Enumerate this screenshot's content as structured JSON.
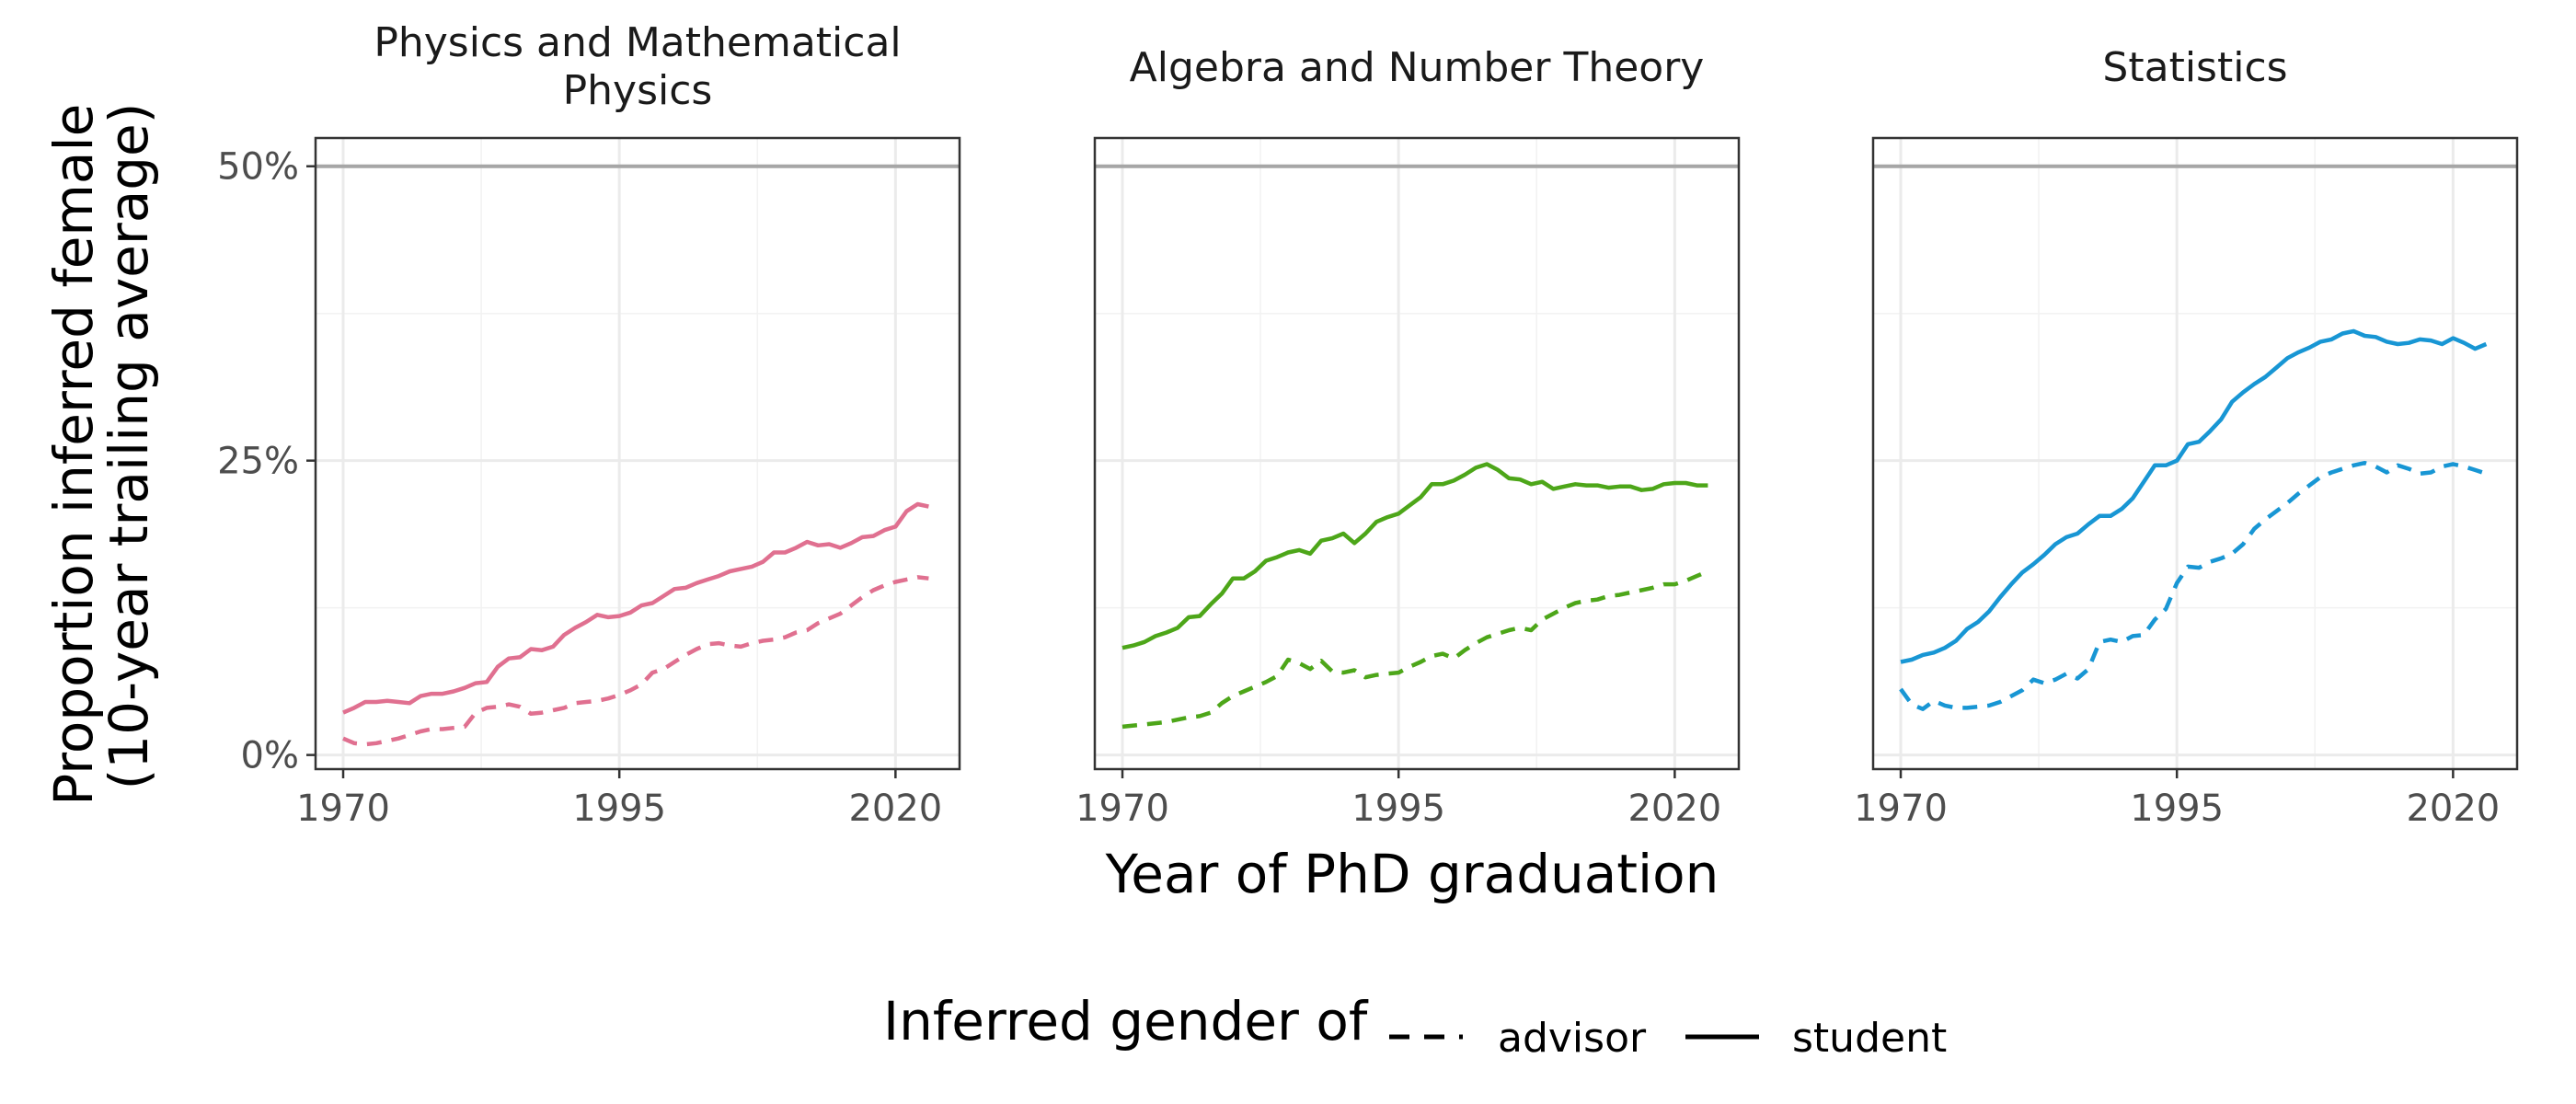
{
  "chart_data": {
    "type": "line",
    "xlabel": "Year of PhD graduation",
    "ylabel_lines": [
      "Proportion inferred female",
      "(10-year trailing average)"
    ],
    "xticks": [
      1970,
      1995,
      2020
    ],
    "yticks": [
      {
        "value": 0,
        "label": "0%"
      },
      {
        "value": 0.25,
        "label": "25%"
      },
      {
        "value": 0.5,
        "label": "50%"
      }
    ],
    "xlim": [
      1967.5,
      2025.8
    ],
    "ylim": [
      -0.012,
      0.524
    ],
    "reference_line": 0.5,
    "grid": true,
    "legend": {
      "title": "Inferred gender of",
      "position": "bottom",
      "entries": [
        {
          "label": "advisor",
          "style": "dashed"
        },
        {
          "label": "student",
          "style": "solid"
        }
      ]
    },
    "panels": [
      {
        "title_lines": [
          "Physics and Mathematical",
          "Physics"
        ],
        "color": "#e07090",
        "series": [
          {
            "role": "student",
            "style": "solid",
            "x": [
              1970,
              1971,
              1972,
              1973,
              1974,
              1975,
              1976,
              1977,
              1978,
              1979,
              1980,
              1981,
              1982,
              1983,
              1984,
              1985,
              1986,
              1987,
              1988,
              1989,
              1990,
              1991,
              1992,
              1993,
              1994,
              1995,
              1996,
              1997,
              1998,
              1999,
              2000,
              2001,
              2002,
              2003,
              2004,
              2005,
              2006,
              2007,
              2008,
              2009,
              2010,
              2011,
              2012,
              2013,
              2014,
              2015,
              2016,
              2017,
              2018,
              2019,
              2020,
              2021,
              2022,
              2023
            ],
            "y": [
              0.036,
              0.04,
              0.045,
              0.045,
              0.046,
              0.045,
              0.044,
              0.05,
              0.052,
              0.052,
              0.054,
              0.057,
              0.061,
              0.062,
              0.075,
              0.082,
              0.083,
              0.09,
              0.089,
              0.092,
              0.102,
              0.108,
              0.113,
              0.119,
              0.117,
              0.118,
              0.121,
              0.127,
              0.129,
              0.135,
              0.141,
              0.142,
              0.146,
              0.149,
              0.152,
              0.156,
              0.158,
              0.16,
              0.164,
              0.172,
              0.172,
              0.176,
              0.181,
              0.178,
              0.179,
              0.176,
              0.18,
              0.185,
              0.186,
              0.191,
              0.194,
              0.207,
              0.213,
              0.211
            ]
          },
          {
            "role": "advisor",
            "style": "dashed",
            "x": [
              1970,
              1971,
              1972,
              1973,
              1974,
              1975,
              1976,
              1977,
              1978,
              1979,
              1980,
              1981,
              1982,
              1983,
              1984,
              1985,
              1986,
              1987,
              1988,
              1989,
              1990,
              1991,
              1992,
              1993,
              1994,
              1995,
              1996,
              1997,
              1998,
              1999,
              2000,
              2001,
              2002,
              2003,
              2004,
              2005,
              2006,
              2007,
              2008,
              2009,
              2010,
              2011,
              2012,
              2013,
              2014,
              2015,
              2016,
              2017,
              2018,
              2019,
              2020,
              2021,
              2022,
              2023
            ],
            "y": [
              0.014,
              0.01,
              0.009,
              0.01,
              0.012,
              0.014,
              0.017,
              0.02,
              0.022,
              0.022,
              0.023,
              0.024,
              0.036,
              0.04,
              0.041,
              0.043,
              0.041,
              0.035,
              0.036,
              0.038,
              0.04,
              0.044,
              0.045,
              0.046,
              0.048,
              0.051,
              0.055,
              0.06,
              0.07,
              0.073,
              0.079,
              0.085,
              0.09,
              0.094,
              0.095,
              0.093,
              0.092,
              0.095,
              0.097,
              0.098,
              0.1,
              0.104,
              0.106,
              0.112,
              0.116,
              0.12,
              0.127,
              0.134,
              0.14,
              0.144,
              0.147,
              0.149,
              0.151,
              0.15
            ]
          }
        ]
      },
      {
        "title_lines": [
          "Algebra and Number Theory"
        ],
        "color": "#4da619",
        "series": [
          {
            "role": "student",
            "style": "solid",
            "x": [
              1970,
              1971,
              1972,
              1973,
              1974,
              1975,
              1976,
              1977,
              1978,
              1979,
              1980,
              1981,
              1982,
              1983,
              1984,
              1985,
              1986,
              1987,
              1988,
              1989,
              1990,
              1991,
              1992,
              1993,
              1994,
              1995,
              1996,
              1997,
              1998,
              1999,
              2000,
              2001,
              2002,
              2003,
              2004,
              2005,
              2006,
              2007,
              2008,
              2009,
              2010,
              2011,
              2012,
              2013,
              2014,
              2015,
              2016,
              2017,
              2018,
              2019,
              2020,
              2021,
              2022,
              2023
            ],
            "y": [
              0.091,
              0.093,
              0.096,
              0.101,
              0.104,
              0.108,
              0.117,
              0.118,
              0.128,
              0.137,
              0.15,
              0.15,
              0.156,
              0.165,
              0.168,
              0.172,
              0.174,
              0.171,
              0.182,
              0.184,
              0.188,
              0.18,
              0.188,
              0.198,
              0.202,
              0.205,
              0.212,
              0.219,
              0.23,
              0.23,
              0.233,
              0.238,
              0.244,
              0.247,
              0.242,
              0.235,
              0.234,
              0.23,
              0.232,
              0.226,
              0.228,
              0.23,
              0.229,
              0.229,
              0.227,
              0.228,
              0.228,
              0.225,
              0.226,
              0.23,
              0.231,
              0.231,
              0.229,
              0.229
            ]
          },
          {
            "role": "advisor",
            "style": "dashed",
            "x": [
              1970,
              1971,
              1972,
              1973,
              1974,
              1975,
              1976,
              1977,
              1978,
              1979,
              1980,
              1981,
              1982,
              1983,
              1984,
              1985,
              1986,
              1987,
              1988,
              1989,
              1990,
              1991,
              1992,
              1993,
              1994,
              1995,
              1996,
              1997,
              1998,
              1999,
              2000,
              2001,
              2002,
              2003,
              2004,
              2005,
              2006,
              2007,
              2008,
              2009,
              2010,
              2011,
              2012,
              2013,
              2014,
              2015,
              2016,
              2017,
              2018,
              2019,
              2020,
              2021,
              2022,
              2023
            ],
            "y": [
              0.024,
              0.025,
              0.026,
              0.027,
              0.028,
              0.03,
              0.032,
              0.033,
              0.036,
              0.044,
              0.05,
              0.054,
              0.058,
              0.062,
              0.067,
              0.081,
              0.078,
              0.073,
              0.08,
              0.071,
              0.07,
              0.072,
              0.066,
              0.068,
              0.069,
              0.07,
              0.075,
              0.079,
              0.084,
              0.086,
              0.082,
              0.089,
              0.095,
              0.1,
              0.103,
              0.106,
              0.108,
              0.106,
              0.115,
              0.12,
              0.125,
              0.129,
              0.131,
              0.132,
              0.135,
              0.136,
              0.138,
              0.14,
              0.142,
              0.145,
              0.145,
              0.148,
              0.152,
              0.156
            ]
          }
        ]
      },
      {
        "title_lines": [
          "Statistics"
        ],
        "color": "#1896d4",
        "series": [
          {
            "role": "student",
            "style": "solid",
            "x": [
              1970,
              1971,
              1972,
              1973,
              1974,
              1975,
              1976,
              1977,
              1978,
              1979,
              1980,
              1981,
              1982,
              1983,
              1984,
              1985,
              1986,
              1987,
              1988,
              1989,
              1990,
              1991,
              1992,
              1993,
              1994,
              1995,
              1996,
              1997,
              1998,
              1999,
              2000,
              2001,
              2002,
              2003,
              2004,
              2005,
              2006,
              2007,
              2008,
              2009,
              2010,
              2011,
              2012,
              2013,
              2014,
              2015,
              2016,
              2017,
              2018,
              2019,
              2020,
              2021,
              2022,
              2023
            ],
            "y": [
              0.079,
              0.081,
              0.085,
              0.087,
              0.091,
              0.097,
              0.107,
              0.113,
              0.122,
              0.134,
              0.145,
              0.155,
              0.162,
              0.17,
              0.179,
              0.185,
              0.188,
              0.196,
              0.203,
              0.203,
              0.209,
              0.218,
              0.232,
              0.246,
              0.246,
              0.25,
              0.264,
              0.266,
              0.275,
              0.285,
              0.3,
              0.308,
              0.315,
              0.321,
              0.329,
              0.337,
              0.342,
              0.346,
              0.351,
              0.353,
              0.358,
              0.36,
              0.356,
              0.355,
              0.351,
              0.349,
              0.35,
              0.353,
              0.352,
              0.349,
              0.354,
              0.35,
              0.345,
              0.349
            ]
          },
          {
            "role": "advisor",
            "style": "dashed",
            "x": [
              1970,
              1971,
              1972,
              1973,
              1974,
              1975,
              1976,
              1977,
              1978,
              1979,
              1980,
              1981,
              1982,
              1983,
              1984,
              1985,
              1986,
              1987,
              1988,
              1989,
              1990,
              1991,
              1992,
              1993,
              1994,
              1995,
              1996,
              1997,
              1998,
              1999,
              2000,
              2001,
              2002,
              2003,
              2004,
              2005,
              2006,
              2007,
              2008,
              2009,
              2010,
              2011,
              2012,
              2013,
              2014,
              2015,
              2016,
              2017,
              2018,
              2019,
              2020,
              2021,
              2022,
              2023
            ],
            "y": [
              0.056,
              0.043,
              0.039,
              0.046,
              0.042,
              0.04,
              0.04,
              0.041,
              0.042,
              0.045,
              0.05,
              0.055,
              0.064,
              0.061,
              0.064,
              0.069,
              0.065,
              0.073,
              0.096,
              0.098,
              0.096,
              0.101,
              0.102,
              0.115,
              0.124,
              0.146,
              0.16,
              0.159,
              0.164,
              0.167,
              0.171,
              0.179,
              0.192,
              0.2,
              0.207,
              0.214,
              0.222,
              0.229,
              0.236,
              0.24,
              0.243,
              0.246,
              0.248,
              0.245,
              0.24,
              0.246,
              0.243,
              0.239,
              0.24,
              0.245,
              0.247,
              0.245,
              0.242,
              0.239
            ]
          }
        ]
      }
    ]
  }
}
